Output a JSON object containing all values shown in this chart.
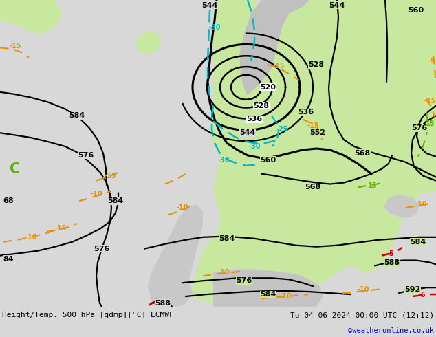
{
  "title_left": "Height/Temp. 500 hPa [gdmp][°C] ECMWF",
  "title_right": "Tu 04-06-2024 00:00 UTC (12+12)",
  "watermark": "©weatheronline.co.uk",
  "bg_color": "#d8d8d8",
  "map_bg_green": "#c8e8a0",
  "map_bg_gray": "#d0d0d0",
  "contour_color_height": "#000000",
  "contour_color_temp_warm": "#e89000",
  "contour_color_temp_cold": "#00b8c8",
  "contour_color_temp_red": "#cc0000",
  "contour_color_green": "#60b000",
  "watermark_color": "#0000cc",
  "fig_width": 6.34,
  "fig_height": 4.9,
  "dpi": 100
}
